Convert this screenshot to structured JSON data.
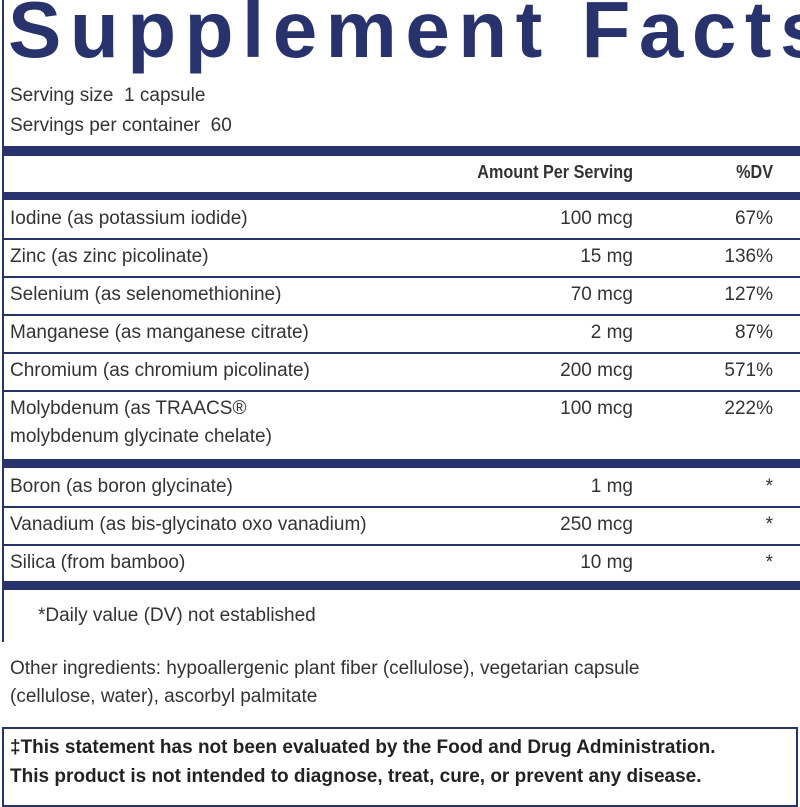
{
  "title": "Supplement Facts",
  "serving_size": "Serving size  1 capsule",
  "servings_per_container": "Servings per container  60",
  "table": {
    "header": [
      "Amount Per Serving",
      "%DV"
    ],
    "groups": [
      [
        {
          "name": [
            "Iodine (as potassium iodide)"
          ],
          "amount": "100 mcg",
          "dv": "67%"
        },
        {
          "name": [
            "Zinc (as zinc picolinate)"
          ],
          "amount": "15 mg",
          "dv": "136%"
        },
        {
          "name": [
            "Selenium (as selenomethionine)"
          ],
          "amount": "70 mcg",
          "dv": "127%"
        },
        {
          "name": [
            "Manganese (as manganese citrate)"
          ],
          "amount": "2 mg",
          "dv": "87%"
        },
        {
          "name": [
            "Chromium (as chromium picolinate)"
          ],
          "amount": "200 mcg",
          "dv": "571%"
        },
        {
          "name": [
            "Molybdenum (as TRAACS®",
            "molybdenum glycinate chelate)"
          ],
          "amount": "100 mcg",
          "dv": "222%"
        }
      ],
      [
        {
          "name": [
            "Boron (as boron glycinate)"
          ],
          "amount": "1 mg",
          "dv": "*"
        },
        {
          "name": [
            "Vanadium (as bis-glycinato oxo vanadium)"
          ],
          "amount": "250 mcg",
          "dv": "*"
        },
        {
          "name": [
            "Silica (from bamboo)"
          ],
          "amount": "10 mg",
          "dv": "*"
        }
      ]
    ]
  },
  "footnote": "*Daily value (DV) not established",
  "other_ingredients": [
    "Other ingredients: hypoallergenic plant fiber (cellulose), vegetarian capsule",
    "(cellulose, water), ascorbyl palmitate"
  ],
  "disclaimer": [
    "‡This statement has not been evaluated by the Food and Drug Administration.",
    "This product is not intended to diagnose, treat, cure, or prevent any disease."
  ]
}
